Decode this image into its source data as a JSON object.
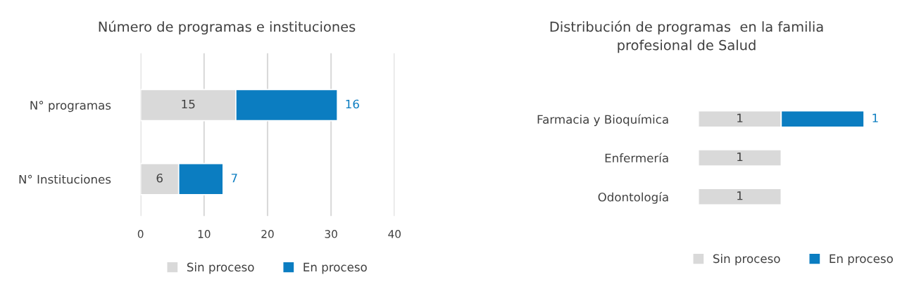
{
  "chart_data": [
    {
      "type": "bar",
      "orientation": "horizontal",
      "stacked": true,
      "title": "Número de programas e instituciones",
      "categories": [
        "N° programas",
        "N° Instituciones"
      ],
      "series": [
        {
          "name": "Sin proceso",
          "color": "#d9d9d9",
          "values": [
            15,
            6
          ]
        },
        {
          "name": "En proceso",
          "color": "#0b7dc1",
          "values": [
            16,
            7
          ]
        }
      ],
      "xlim": [
        0,
        40
      ],
      "xticks": [
        0,
        10,
        20,
        30,
        40
      ],
      "grid": "x",
      "legend": "bottom",
      "data_labels": true
    },
    {
      "type": "bar",
      "orientation": "horizontal",
      "stacked": true,
      "title": "Distribución de programas  en la familia\nprofesional de Salud",
      "categories": [
        "Farmacia y Bioquímica",
        "Enfermería",
        "Odontología"
      ],
      "series": [
        {
          "name": "Sin proceso",
          "color": "#d9d9d9",
          "values": [
            1,
            1,
            1
          ]
        },
        {
          "name": "En proceso",
          "color": "#0b7dc1",
          "values": [
            1,
            null,
            null
          ]
        }
      ],
      "legend": "bottom",
      "data_labels": true
    }
  ]
}
